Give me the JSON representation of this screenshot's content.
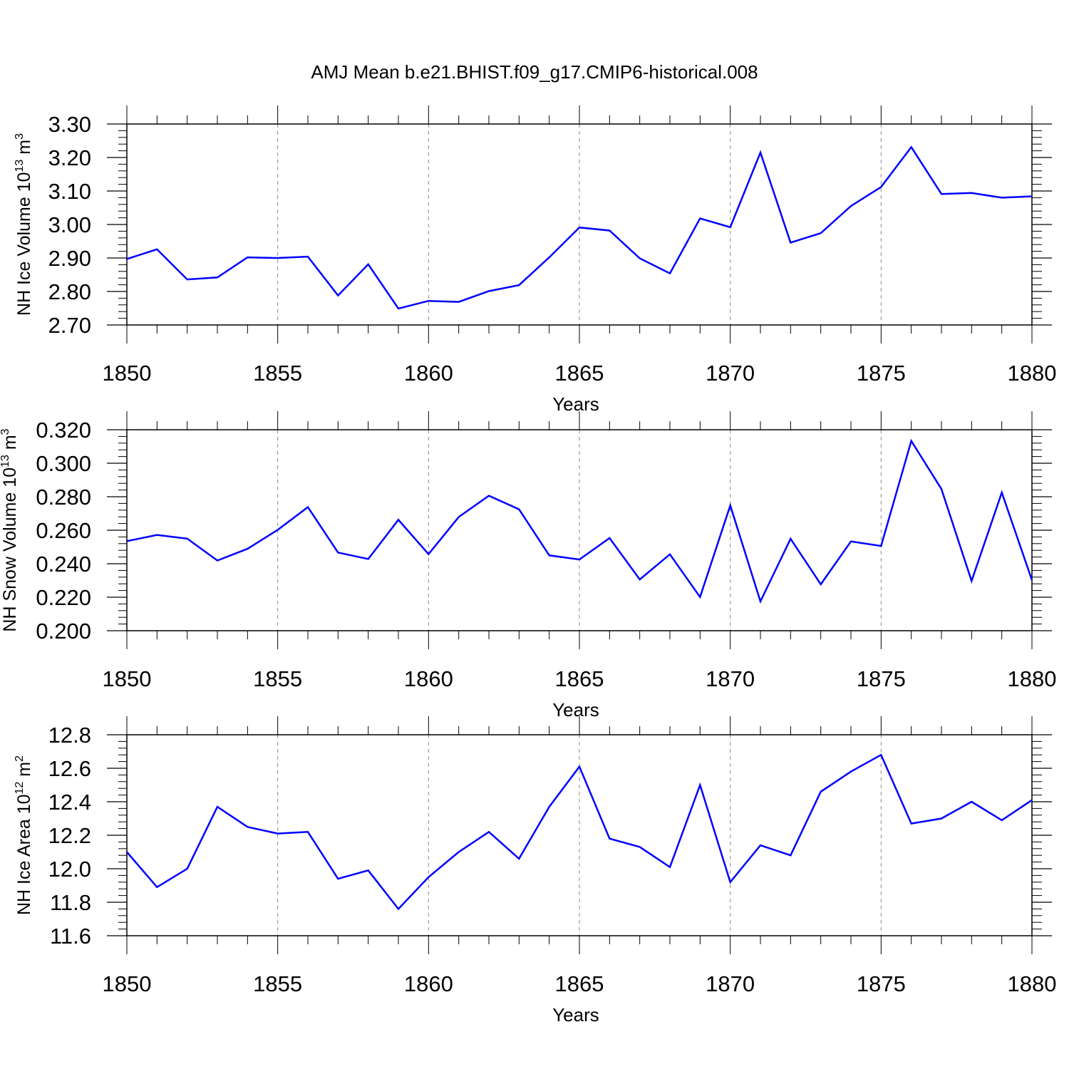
{
  "chart_data": {
    "title": "AMJ Mean b.e21.BHIST.f09_g17.CMIP6-historical.008",
    "panels": [
      {
        "type": "line",
        "ylabel": "NH Ice Volume 10",
        "ylabel_exp": "13",
        "ylabel_unit": " m",
        "ylabel_unit_exp": "3",
        "xlabel": "Years",
        "xlim": [
          1850,
          1880
        ],
        "ylim": [
          2.7,
          3.3
        ],
        "yticks": [
          "2.70",
          "2.80",
          "2.90",
          "3.00",
          "3.10",
          "3.20",
          "3.30"
        ],
        "xticks": [
          "1850",
          "1855",
          "1860",
          "1865",
          "1870",
          "1875",
          "1880"
        ],
        "color": "#0000ff",
        "x": [
          1850,
          1851,
          1852,
          1853,
          1854,
          1855,
          1856,
          1857,
          1858,
          1859,
          1860,
          1861,
          1862,
          1863,
          1864,
          1865,
          1866,
          1867,
          1868,
          1869,
          1870,
          1871,
          1872,
          1873,
          1874,
          1875,
          1876,
          1877,
          1878,
          1879,
          1880
        ],
        "y": [
          2.897,
          2.926,
          2.836,
          2.842,
          2.902,
          2.9,
          2.904,
          2.788,
          2.881,
          2.749,
          2.772,
          2.769,
          2.801,
          2.819,
          2.902,
          2.991,
          2.982,
          2.899,
          2.854,
          3.018,
          2.992,
          3.215,
          2.946,
          2.974,
          3.055,
          3.112,
          3.231,
          3.091,
          3.094,
          3.08,
          3.084
        ]
      },
      {
        "type": "line",
        "ylabel": "NH Snow Volume 10",
        "ylabel_exp": "13",
        "ylabel_unit": " m",
        "ylabel_unit_exp": "3",
        "xlabel": "Years",
        "xlim": [
          1850,
          1880
        ],
        "ylim": [
          0.2,
          0.32
        ],
        "yticks": [
          "0.200",
          "0.220",
          "0.240",
          "0.260",
          "0.280",
          "0.300",
          "0.320"
        ],
        "xticks": [
          "1850",
          "1855",
          "1860",
          "1865",
          "1870",
          "1875",
          "1880"
        ],
        "color": "#0000ff",
        "x": [
          1850,
          1851,
          1852,
          1853,
          1854,
          1855,
          1856,
          1857,
          1858,
          1859,
          1860,
          1861,
          1862,
          1863,
          1864,
          1865,
          1866,
          1867,
          1868,
          1869,
          1870,
          1871,
          1872,
          1873,
          1874,
          1875,
          1876,
          1877,
          1878,
          1879,
          1880
        ],
        "y": [
          0.2535,
          0.2572,
          0.255,
          0.2419,
          0.2489,
          0.2602,
          0.2738,
          0.2467,
          0.2428,
          0.2662,
          0.2457,
          0.2679,
          0.2806,
          0.2725,
          0.245,
          0.2425,
          0.2553,
          0.2306,
          0.2456,
          0.2201,
          0.2748,
          0.2175,
          0.2549,
          0.2277,
          0.2533,
          0.2506,
          0.3133,
          0.2846,
          0.2297,
          0.2825,
          0.2302
        ]
      },
      {
        "type": "line",
        "ylabel": "NH Ice Area 10",
        "ylabel_exp": "12",
        "ylabel_unit": " m",
        "ylabel_unit_exp": "2",
        "xlabel": "Years",
        "xlim": [
          1850,
          1880
        ],
        "ylim": [
          11.6,
          12.8
        ],
        "yticks": [
          "11.6",
          "11.8",
          "12.0",
          "12.2",
          "12.4",
          "12.6",
          "12.8"
        ],
        "xticks": [
          "1850",
          "1855",
          "1860",
          "1865",
          "1870",
          "1875",
          "1880"
        ],
        "color": "#0000ff",
        "x": [
          1850,
          1851,
          1852,
          1853,
          1854,
          1855,
          1856,
          1857,
          1858,
          1859,
          1860,
          1861,
          1862,
          1863,
          1864,
          1865,
          1866,
          1867,
          1868,
          1869,
          1870,
          1871,
          1872,
          1873,
          1874,
          1875,
          1876,
          1877,
          1878,
          1879,
          1880
        ],
        "y": [
          12.1,
          11.89,
          12.0,
          12.37,
          12.25,
          12.21,
          12.22,
          11.94,
          11.99,
          11.76,
          11.95,
          12.1,
          12.22,
          12.06,
          12.37,
          12.61,
          12.18,
          12.13,
          12.01,
          12.5,
          11.92,
          12.14,
          12.08,
          12.46,
          12.58,
          12.68,
          12.27,
          12.3,
          12.4,
          12.29,
          12.41
        ]
      }
    ]
  }
}
